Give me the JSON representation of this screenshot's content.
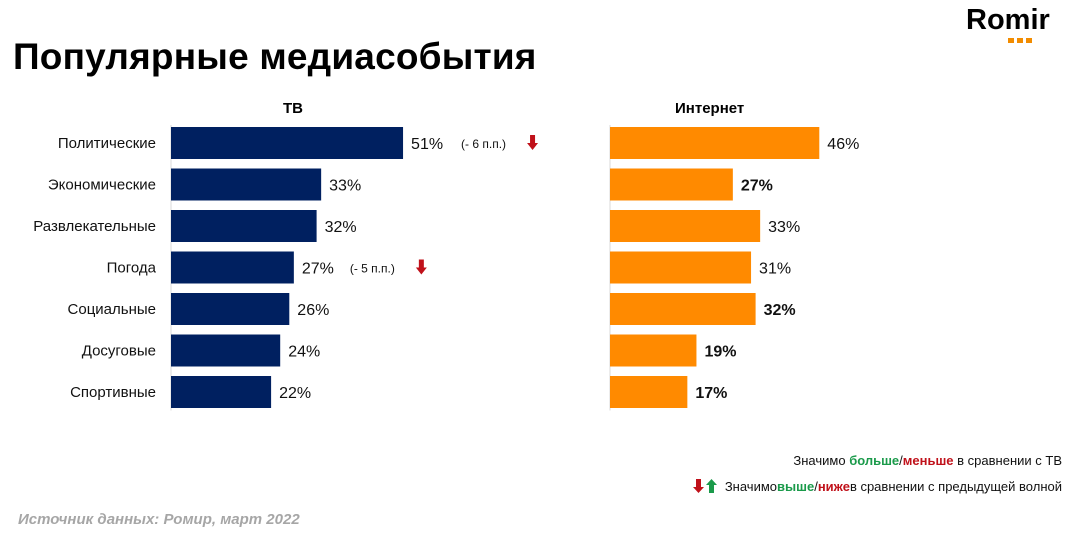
{
  "title": "Популярные медиасобытия",
  "logo": "Romir",
  "chart_data": {
    "type": "bar",
    "orientation": "horizontal",
    "categories": [
      "Политические",
      "Экономические",
      "Развлекательные",
      "Погода",
      "Социальные",
      "Досуговые",
      "Спортивные"
    ],
    "series": [
      {
        "name": "ТВ",
        "values": [
          51,
          33,
          32,
          27,
          26,
          24,
          22
        ],
        "labels": [
          "51%",
          "33%",
          "32%",
          "27%",
          "26%",
          "24%",
          "22%"
        ],
        "label_colors": [
          "#111111",
          "#111111",
          "#111111",
          "#111111",
          "#111111",
          "#111111",
          "#111111"
        ],
        "label_bold": [
          false,
          false,
          false,
          false,
          false,
          false,
          false
        ],
        "notes": [
          "(- 6 п.п.)",
          "",
          "",
          "(- 5 п.п.)",
          "",
          "",
          ""
        ],
        "note_arrows": [
          "down",
          "",
          "",
          "down",
          "",
          "",
          ""
        ],
        "color": "#002060"
      },
      {
        "name": "Интернет",
        "values": [
          46,
          27,
          33,
          31,
          32,
          19,
          17
        ],
        "labels": [
          "46%",
          "27%",
          "33%",
          "31%",
          "32%",
          "19%",
          "17%"
        ],
        "label_colors": [
          "#111111",
          "#c0111a",
          "#111111",
          "#111111",
          "#1a9a4a",
          "#c0111a",
          "#c0111a"
        ],
        "label_bold": [
          false,
          true,
          false,
          false,
          true,
          true,
          true
        ],
        "color": "#ff8a00"
      }
    ]
  },
  "legend": {
    "line1": {
      "prefix": "Значимо ",
      "more": "больше",
      "slash": "/",
      "less": "меньше",
      "suffix": " в сравнении с ТВ"
    },
    "line2": {
      "prefix": "Значимо ",
      "up": "выше",
      "slash": "/",
      "down": "ниже",
      "suffix": " в сравнении с предыдущей волной"
    }
  },
  "colors": {
    "green": "#1a9a4a",
    "red": "#c0111a",
    "arrow_down": "#c0111a",
    "arrow_up": "#1a9a4a"
  },
  "source": "Источник данных: Ромир, март 2022"
}
